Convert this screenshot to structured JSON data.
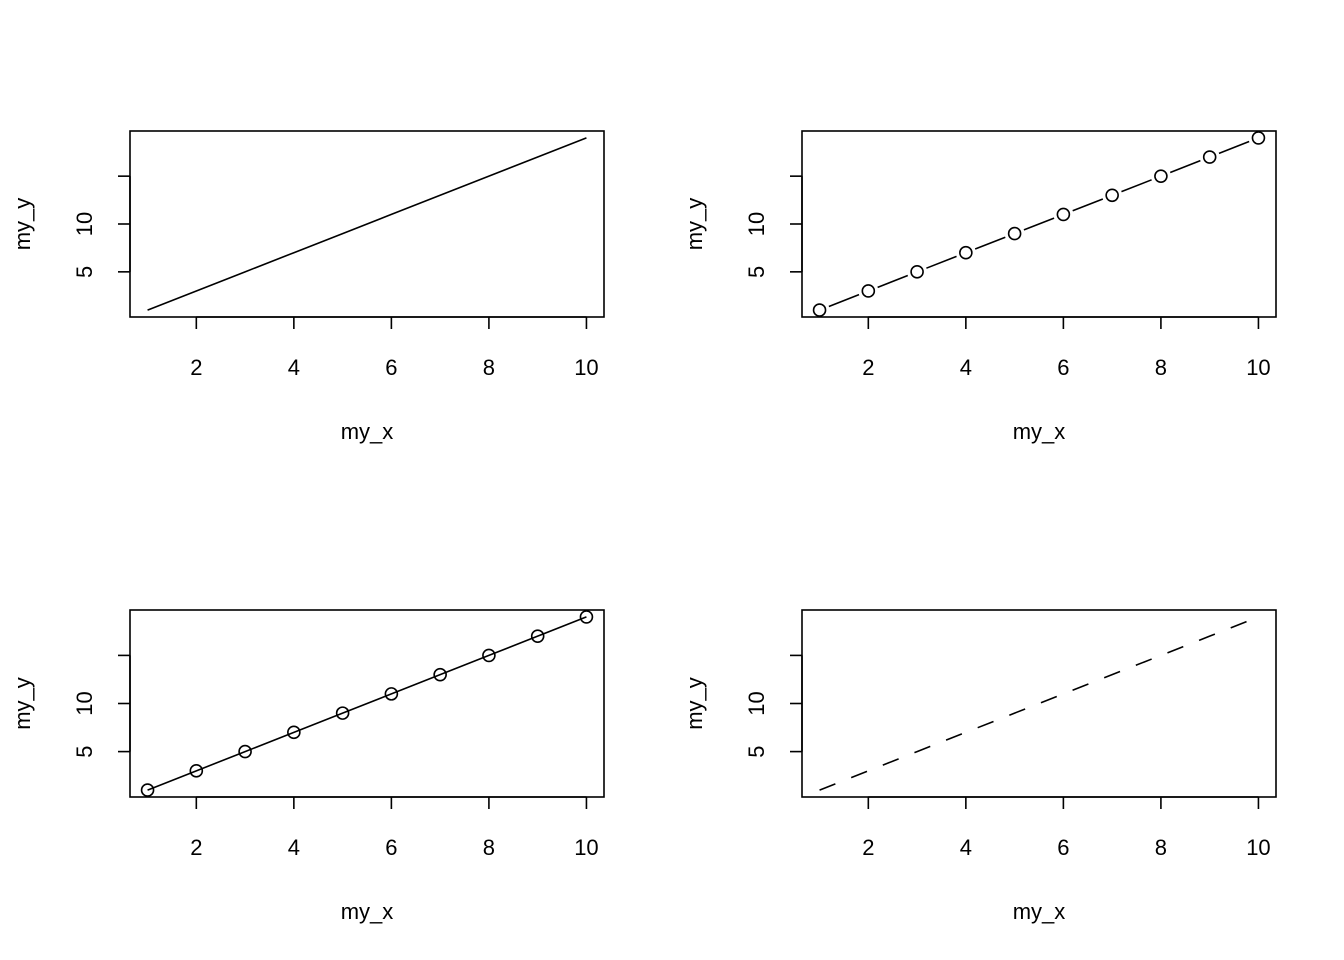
{
  "chart_data": [
    {
      "type": "line",
      "line": "solid",
      "markers": false,
      "x": [
        1,
        2,
        3,
        4,
        5,
        6,
        7,
        8,
        9,
        10
      ],
      "values": [
        1,
        3,
        5,
        7,
        9,
        11,
        13,
        15,
        17,
        19
      ],
      "xlabel": "my_x",
      "ylabel": "my_y",
      "xlim": [
        0.64,
        10.36
      ],
      "ylim": [
        0.28,
        19.72
      ],
      "xticks": [
        2,
        4,
        6,
        8,
        10
      ],
      "yticks": [
        5,
        10,
        {
          "value": 15
        }
      ]
    },
    {
      "type": "line",
      "line": "gapped",
      "markers": true,
      "x": [
        1,
        2,
        3,
        4,
        5,
        6,
        7,
        8,
        9,
        10
      ],
      "values": [
        1,
        3,
        5,
        7,
        9,
        11,
        13,
        15,
        17,
        19
      ],
      "xlabel": "my_x",
      "ylabel": "my_y",
      "xlim": [
        0.64,
        10.36
      ],
      "ylim": [
        0.28,
        19.72
      ],
      "xticks": [
        2,
        4,
        6,
        8,
        10
      ],
      "yticks": [
        5,
        10,
        {
          "value": 15
        }
      ]
    },
    {
      "type": "line",
      "line": "solid",
      "markers": true,
      "x": [
        1,
        2,
        3,
        4,
        5,
        6,
        7,
        8,
        9,
        10
      ],
      "values": [
        1,
        3,
        5,
        7,
        9,
        11,
        13,
        15,
        17,
        19
      ],
      "xlabel": "my_x",
      "ylabel": "my_y",
      "xlim": [
        0.64,
        10.36
      ],
      "ylim": [
        0.28,
        19.72
      ],
      "xticks": [
        2,
        4,
        6,
        8,
        10
      ],
      "yticks": [
        5,
        10,
        {
          "value": 15
        }
      ]
    },
    {
      "type": "line",
      "line": "dashed",
      "markers": false,
      "x": [
        1,
        2,
        3,
        4,
        5,
        6,
        7,
        8,
        9,
        10
      ],
      "values": [
        1,
        3,
        5,
        7,
        9,
        11,
        13,
        15,
        17,
        19
      ],
      "xlabel": "my_x",
      "ylabel": "my_y",
      "xlim": [
        0.64,
        10.36
      ],
      "ylim": [
        0.28,
        19.72
      ],
      "xticks": [
        2,
        4,
        6,
        8,
        10
      ],
      "yticks": [
        5,
        10,
        {
          "value": 15
        }
      ]
    }
  ]
}
